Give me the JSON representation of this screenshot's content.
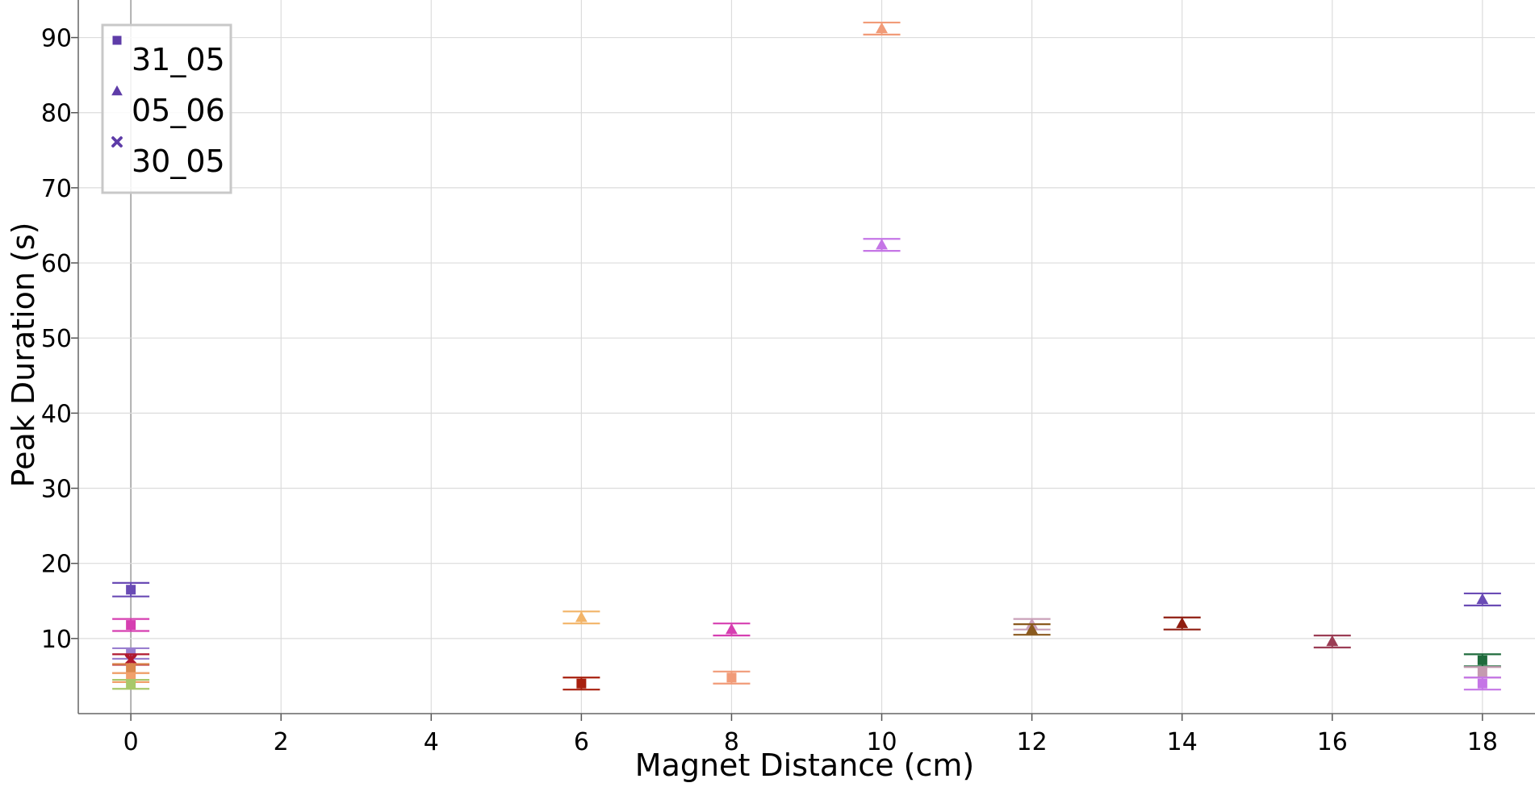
{
  "chart_data": {
    "type": "scatter",
    "xlabel": "Magnet Distance (cm)",
    "ylabel": "Peak Duration (s)",
    "xlim": [
      -0.7,
      18.7
    ],
    "ylim": [
      0,
      95
    ],
    "xticks": [
      "0",
      "2",
      "4",
      "6",
      "8",
      "10",
      "12",
      "14",
      "16",
      "18"
    ],
    "yticks": [
      "10",
      "20",
      "30",
      "40",
      "50",
      "60",
      "70",
      "80",
      "90"
    ],
    "grid": true,
    "legend_placement": "top-left",
    "legend": [
      {
        "label": "31_05",
        "marker": "square",
        "color": "#5e3ca8"
      },
      {
        "label": "05_06",
        "marker": "triangle",
        "color": "#5e3ca8"
      },
      {
        "label": "30_05",
        "marker": "x",
        "color": "#5e3ca8"
      }
    ],
    "points": [
      {
        "x": 0,
        "y": 16.5,
        "err": 0.9,
        "marker": "square",
        "color": "#6a4bb5"
      },
      {
        "x": 0,
        "y": 11.8,
        "err": 0.8,
        "marker": "square",
        "color": "#d63fb1"
      },
      {
        "x": 0,
        "y": 8.0,
        "err": 0.7,
        "marker": "square",
        "color": "#9a7fcf"
      },
      {
        "x": 0,
        "y": 7.2,
        "err": 0.7,
        "marker": "x",
        "color": "#b0182f"
      },
      {
        "x": 0,
        "y": 6.0,
        "err": 0.6,
        "marker": "square",
        "color": "#d9884d"
      },
      {
        "x": 0,
        "y": 4.8,
        "err": 0.6,
        "marker": "square",
        "color": "#f0a06a"
      },
      {
        "x": 0,
        "y": 3.9,
        "err": 0.6,
        "marker": "square",
        "color": "#a8c86a"
      },
      {
        "x": 6,
        "y": 12.8,
        "err": 0.8,
        "marker": "triangle",
        "color": "#f2b468"
      },
      {
        "x": 6,
        "y": 4.0,
        "err": 0.8,
        "marker": "square",
        "color": "#a8200e"
      },
      {
        "x": 8,
        "y": 11.2,
        "err": 0.8,
        "marker": "triangle",
        "color": "#d63fb1"
      },
      {
        "x": 8,
        "y": 4.8,
        "err": 0.8,
        "marker": "square",
        "color": "#f19b78"
      },
      {
        "x": 10,
        "y": 91.2,
        "err": 0.8,
        "marker": "triangle",
        "color": "#f19b78"
      },
      {
        "x": 10,
        "y": 62.4,
        "err": 0.8,
        "marker": "triangle",
        "color": "#c576e6"
      },
      {
        "x": 12,
        "y": 11.9,
        "err": 0.7,
        "marker": "triangle",
        "color": "#c9a0b8"
      },
      {
        "x": 12,
        "y": 11.2,
        "err": 0.7,
        "marker": "triangle",
        "color": "#8a5a1e"
      },
      {
        "x": 14,
        "y": 12.0,
        "err": 0.8,
        "marker": "triangle",
        "color": "#8f1d10"
      },
      {
        "x": 16,
        "y": 9.6,
        "err": 0.8,
        "marker": "triangle",
        "color": "#9b3d55"
      },
      {
        "x": 18,
        "y": 15.2,
        "err": 0.8,
        "marker": "triangle",
        "color": "#6a4bb5"
      },
      {
        "x": 18,
        "y": 7.1,
        "err": 0.8,
        "marker": "square",
        "color": "#1f6b3c"
      },
      {
        "x": 18,
        "y": 5.5,
        "err": 0.7,
        "marker": "square",
        "color": "#c49ab0"
      },
      {
        "x": 18,
        "y": 4.0,
        "err": 0.8,
        "marker": "square",
        "color": "#c576e6"
      }
    ]
  }
}
